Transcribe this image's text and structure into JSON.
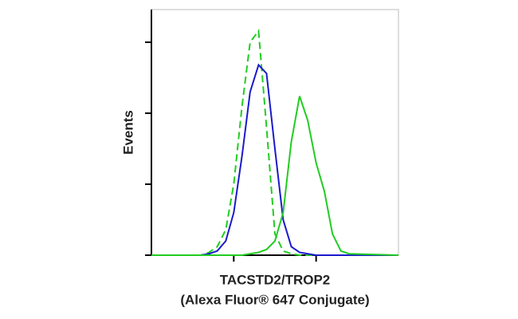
{
  "chart_data": {
    "type": "line",
    "xlabel": "TACSTD2/TROP2",
    "xlabel2": "(Alexa Fluor® 647 Conjugate)",
    "ylabel": "Events",
    "x": [
      1,
      4,
      5,
      6.3,
      8,
      10,
      12.6,
      15.8,
      20,
      25,
      31.6,
      39.8,
      50,
      63,
      79,
      100,
      126,
      158,
      200,
      251,
      1000
    ],
    "xlim": [
      1,
      1000
    ],
    "xticks": [
      10,
      100
    ],
    "xlog": true,
    "ylim": [
      0,
      173
    ],
    "yticks": [
      0,
      50,
      100,
      150
    ],
    "series": [
      {
        "color": "#22cc22",
        "dash": true,
        "values": [
          0,
          0,
          2,
          6,
          18,
          50,
          105,
          150,
          158,
          90,
          15,
          3,
          1,
          0,
          0,
          0,
          0,
          0,
          0,
          0,
          0
        ]
      },
      {
        "color": "#1a1acc",
        "dash": false,
        "values": [
          0,
          0,
          1,
          3,
          10,
          30,
          70,
          115,
          134,
          128,
          75,
          25,
          6,
          2,
          1,
          0,
          0,
          0,
          0,
          0,
          0
        ]
      },
      {
        "color": "#22cc22",
        "dash": false,
        "values": [
          0,
          0,
          0,
          0,
          0,
          0,
          0,
          1,
          2,
          4,
          10,
          30,
          80,
          112,
          95,
          65,
          45,
          15,
          3,
          1,
          0
        ]
      }
    ]
  }
}
